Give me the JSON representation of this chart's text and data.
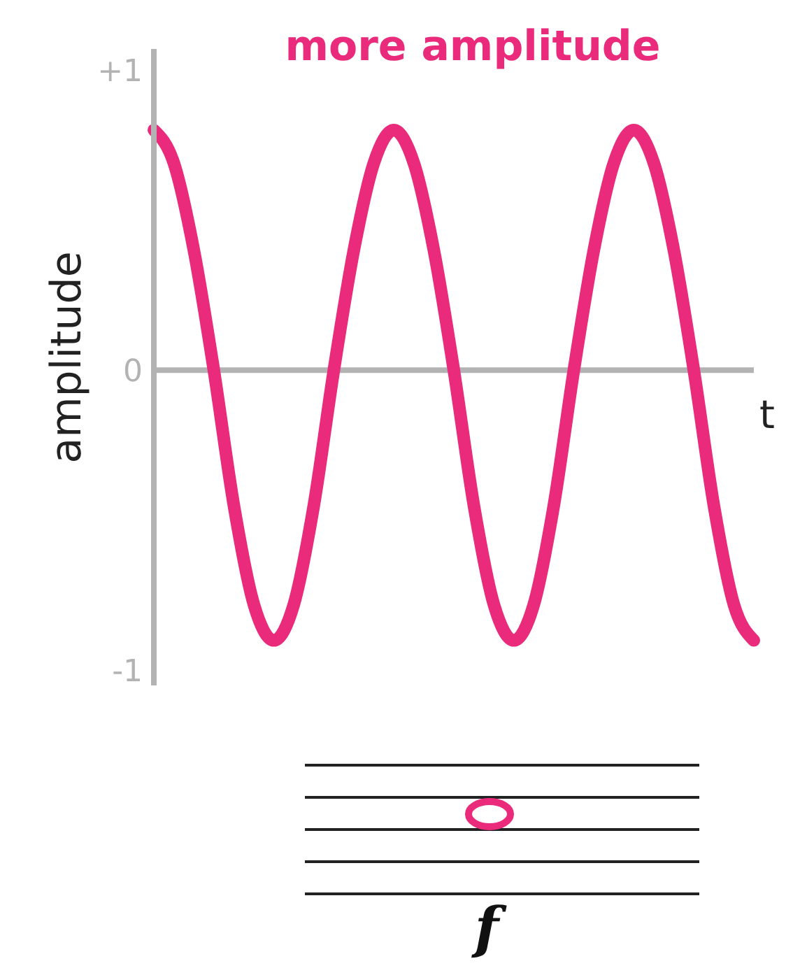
{
  "chart_data": {
    "type": "line",
    "title": "more amplitude",
    "ylabel": "amplitude",
    "xlabel": "t",
    "categories": [
      null,
      null,
      null,
      null,
      null,
      null,
      null,
      null,
      null,
      null,
      null,
      null,
      null,
      null,
      null,
      null,
      null,
      null,
      null,
      null,
      null,
      null,
      null,
      null,
      null,
      null,
      null,
      null,
      null,
      null,
      null
    ],
    "series": [
      {
        "color": "#ea2a7b",
        "values": [
          0.8,
          0.69,
          0.4,
          0,
          -0.45,
          -0.78,
          -0.9,
          -0.78,
          -0.45,
          0,
          0.4,
          0.69,
          0.8,
          0.69,
          0.4,
          0,
          -0.45,
          -0.78,
          -0.9,
          -0.78,
          -0.45,
          0,
          0.4,
          0.69,
          0.8,
          0.69,
          0.4,
          0,
          -0.45,
          -0.78,
          -0.9
        ]
      }
    ],
    "ylim": [
      -1.05,
      1.07
    ],
    "yticks": [
      {
        "value": 1,
        "label": "+1"
      },
      0,
      -1
    ],
    "ref_lines": [
      {
        "axis": "y",
        "value": 0,
        "color": "#b3b3b3"
      }
    ],
    "tick_labels": "y",
    "marker": "none",
    "line_style": "solid",
    "annotations": [
      "f"
    ]
  }
}
